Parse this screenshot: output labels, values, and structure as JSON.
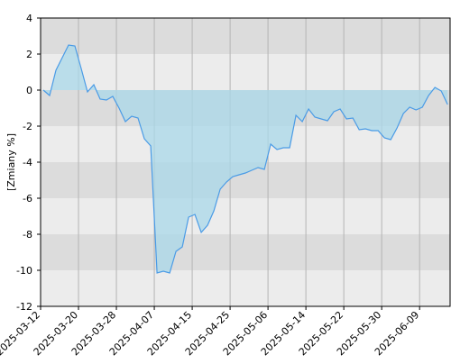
{
  "chart_data": {
    "type": "area",
    "y_label": "[Zmiany %]",
    "categories": [
      "2025-03-12",
      null,
      null,
      null,
      null,
      null,
      "2025-03-20",
      null,
      null,
      null,
      null,
      null,
      "2025-03-28",
      null,
      null,
      null,
      null,
      null,
      "2025-04-07",
      null,
      null,
      null,
      null,
      null,
      "2025-04-15",
      null,
      null,
      null,
      null,
      null,
      "2025-04-25",
      null,
      null,
      null,
      null,
      null,
      "2025-05-06",
      null,
      null,
      null,
      null,
      null,
      "2025-05-14",
      null,
      null,
      null,
      null,
      null,
      "2025-05-22",
      null,
      null,
      null,
      null,
      null,
      "2025-05-30",
      null,
      null,
      null,
      null,
      null,
      "2025-06-09",
      null,
      null,
      null,
      null
    ],
    "values": [
      0,
      -0.3,
      1.1,
      1.8,
      2.5,
      2.45,
      1.2,
      -0.1,
      0.3,
      -0.5,
      -0.55,
      -0.35,
      -1.0,
      -1.75,
      -1.45,
      -1.55,
      -2.7,
      -3.1,
      -10.15,
      -10.05,
      -10.15,
      -8.95,
      -8.7,
      -7.05,
      -6.9,
      -7.9,
      -7.5,
      -6.7,
      -5.5,
      -5.1,
      -4.8,
      -4.7,
      -4.6,
      -4.45,
      -4.3,
      -4.4,
      -3.0,
      -3.3,
      -3.2,
      -3.2,
      -1.4,
      -1.75,
      -1.05,
      -1.5,
      -1.6,
      -1.7,
      -1.2,
      -1.05,
      -1.6,
      -1.55,
      -2.2,
      -2.15,
      -2.25,
      -2.25,
      -2.65,
      -2.75,
      -2.1,
      -1.3,
      -0.95,
      -1.1,
      -0.95,
      -0.3,
      0.15,
      -0.05,
      -0.8
    ],
    "color": "#4a9be6",
    "fill": "#a9d8ea",
    "ylim": [
      -12,
      4
    ],
    "yticks": [
      -12,
      -10,
      -8,
      -6,
      -4,
      -2,
      0,
      2,
      4
    ],
    "grid": true
  }
}
